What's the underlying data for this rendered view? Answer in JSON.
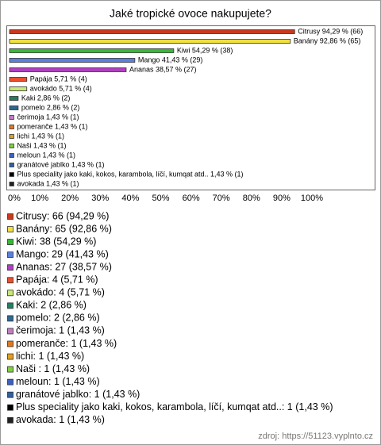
{
  "chart_data": {
    "type": "bar",
    "title": "Jaké tropické ovoce nakupujete?",
    "values": [
      94.29,
      92.86,
      54.29,
      41.43,
      38.57,
      5.71,
      5.71,
      2.86,
      2.86,
      1.43,
      1.43,
      1.43,
      1.43,
      1.43,
      1.43,
      1.43,
      1.43
    ],
    "value_labels": [
      "Citrusy 94,29 % (66)",
      "Banány 92,86 % (65)",
      "Kiwi 54,29 % (38)",
      "Mango 41,43 % (29)",
      "Ananas 38,57 % (27)",
      "Papája 5,71 % (4)",
      "avokádo 5,71 % (4)",
      "Kaki 2,86 % (2)",
      "pomelo 2,86 % (2)",
      "čerimoja 1,43 % (1)",
      "pomeranče 1,43 % (1)",
      "lichi 1,43 % (1)",
      "Naši  1,43 % (1)",
      "meloun 1,43 % (1)",
      "granátové jablko 1,43 % (1)",
      "Plus speciality jako kaki, kokos, karambola, líčí, kumqat atd.. 1,43 % (1)",
      "avokada 1,43 % (1)"
    ],
    "legend_labels": [
      "Citrusy: 66 (94,29 %)",
      "Banány: 65 (92,86 %)",
      "Kiwi: 38 (54,29 %)",
      "Mango: 29 (41,43 %)",
      "Ananas: 27 (38,57 %)",
      "Papája: 4 (5,71 %)",
      "avokádo: 4 (5,71 %)",
      "Kaki: 2 (2,86 %)",
      "pomelo: 2 (2,86 %)",
      "čerimoja: 1 (1,43 %)",
      "pomeranče: 1 (1,43 %)",
      "lichi: 1 (1,43 %)",
      "Naši : 1 (1,43 %)",
      "meloun: 1 (1,43 %)",
      "granátové jablko: 1 (1,43 %)",
      "Plus speciality jako kaki, kokos, karambola, líčí, kumqat atd..: 1 (1,43 %)",
      "avokada: 1 (1,43 %)"
    ],
    "colors": [
      "#c83a1e",
      "#f0e040",
      "#38b838",
      "#5a7fdc",
      "#b040c0",
      "#e85030",
      "#c8e878",
      "#208060",
      "#306890",
      "#c080c0",
      "#e07820",
      "#e0a020",
      "#80d040",
      "#4060c0",
      "#3060a0",
      "#000000",
      "#202020"
    ],
    "xlim": [
      0,
      100
    ],
    "xticks": [
      {
        "value": 0,
        "label": "0%"
      },
      {
        "value": 10,
        "label": "10%"
      },
      {
        "value": 20,
        "label": "20%"
      },
      {
        "value": 30,
        "label": "30%"
      },
      {
        "value": 40,
        "label": "40%"
      },
      {
        "value": 50,
        "label": "50%"
      },
      {
        "value": 60,
        "label": "60%"
      },
      {
        "value": 70,
        "label": "70%"
      },
      {
        "value": 80,
        "label": "80%"
      },
      {
        "value": 90,
        "label": "90%"
      },
      {
        "value": 100,
        "label": "100%"
      }
    ],
    "source": "zdroj: https://51123.vyplnto.cz"
  }
}
